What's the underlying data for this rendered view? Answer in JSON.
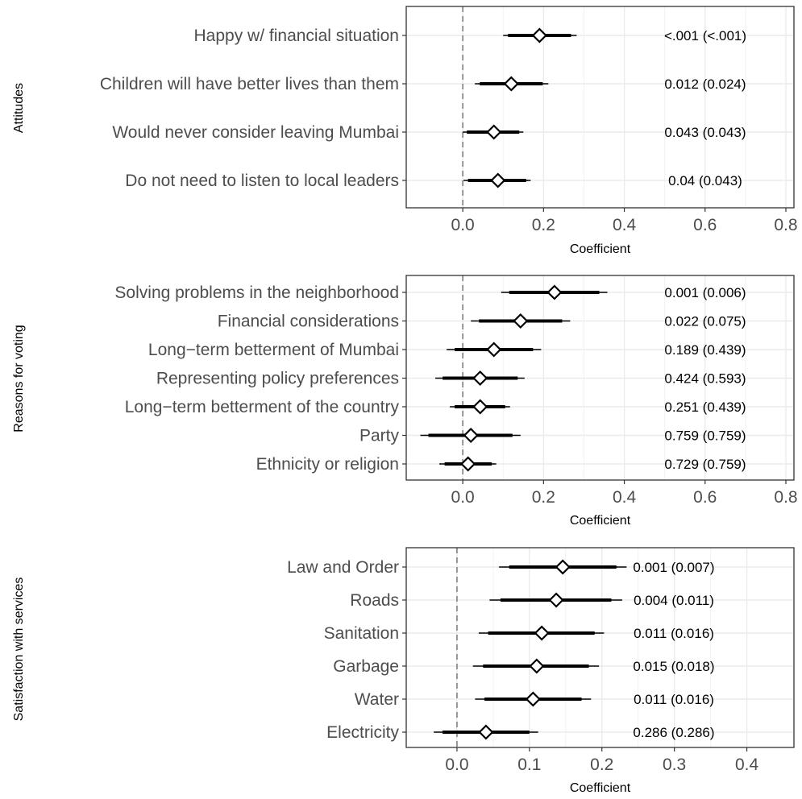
{
  "chart_data": [
    {
      "type": "coefficient",
      "group_label": "Attitudes",
      "xlabel": "Coefficient",
      "xlim": [
        -0.14,
        0.82
      ],
      "ticks": [
        {
          "value": 0.0,
          "label": "0.0"
        },
        {
          "value": 0.2,
          "label": "0.2"
        },
        {
          "value": 0.4,
          "label": "0.4"
        },
        {
          "value": 0.6,
          "label": "0.6"
        },
        {
          "value": 0.8,
          "label": "0.8"
        }
      ],
      "rows": [
        {
          "label": "Happy w/ financial situation",
          "estimate": 0.19,
          "ci90": [
            0.112,
            0.268
          ],
          "ci95": [
            0.1,
            0.282
          ],
          "annotation": "<.001 (<.001)"
        },
        {
          "label": "Children will have better lives than them",
          "estimate": 0.12,
          "ci90": [
            0.042,
            0.198
          ],
          "ci95": [
            0.03,
            0.212
          ],
          "annotation": "0.012 (0.024)"
        },
        {
          "label": "Would never consider leaving Mumbai",
          "estimate": 0.077,
          "ci90": [
            0.01,
            0.14
          ],
          "ci95": [
            0.0,
            0.15
          ],
          "annotation": "0.043 (0.043)"
        },
        {
          "label": "Do not need to listen to local leaders",
          "estimate": 0.087,
          "ci90": [
            0.013,
            0.157
          ],
          "ci95": [
            0.002,
            0.168
          ],
          "annotation": "0.04 (0.043)"
        }
      ]
    },
    {
      "type": "coefficient",
      "group_label": "Reasons for voting",
      "xlabel": "Coefficient",
      "xlim": [
        -0.14,
        0.82
      ],
      "ticks": [
        {
          "value": 0.0,
          "label": "0.0"
        },
        {
          "value": 0.2,
          "label": "0.2"
        },
        {
          "value": 0.4,
          "label": "0.4"
        },
        {
          "value": 0.6,
          "label": "0.6"
        },
        {
          "value": 0.8,
          "label": "0.8"
        }
      ],
      "rows": [
        {
          "label": "Solving problems in the neighborhood",
          "estimate": 0.227,
          "ci90": [
            0.115,
            0.338
          ],
          "ci95": [
            0.095,
            0.358
          ],
          "annotation": "0.001 (0.006)"
        },
        {
          "label": "Financial considerations",
          "estimate": 0.143,
          "ci90": [
            0.04,
            0.246
          ],
          "ci95": [
            0.02,
            0.266
          ],
          "annotation": "0.022 (0.075)"
        },
        {
          "label": "Long−term betterment of Mumbai",
          "estimate": 0.077,
          "ci90": [
            -0.02,
            0.174
          ],
          "ci95": [
            -0.04,
            0.194
          ],
          "annotation": "0.189 (0.439)"
        },
        {
          "label": "Representing policy preferences",
          "estimate": 0.043,
          "ci90": [
            -0.05,
            0.136
          ],
          "ci95": [
            -0.068,
            0.153
          ],
          "annotation": "0.424 (0.593)"
        },
        {
          "label": "Long−term betterment of the country",
          "estimate": 0.043,
          "ci90": [
            -0.02,
            0.105
          ],
          "ci95": [
            -0.032,
            0.117
          ],
          "annotation": "0.251 (0.439)"
        },
        {
          "label": "Party",
          "estimate": 0.02,
          "ci90": [
            -0.085,
            0.123
          ],
          "ci95": [
            -0.105,
            0.143
          ],
          "annotation": "0.759 (0.759)"
        },
        {
          "label": "Ethnicity or religion",
          "estimate": 0.013,
          "ci90": [
            -0.045,
            0.072
          ],
          "ci95": [
            -0.058,
            0.083
          ],
          "annotation": "0.729 (0.759)"
        }
      ]
    },
    {
      "type": "coefficient",
      "group_label": "Satisfaction with services",
      "xlabel": "Coefficient",
      "xlim": [
        -0.07,
        0.465
      ],
      "ticks": [
        {
          "value": 0.0,
          "label": "0.0"
        },
        {
          "value": 0.1,
          "label": "0.1"
        },
        {
          "value": 0.2,
          "label": "0.2"
        },
        {
          "value": 0.3,
          "label": "0.3"
        },
        {
          "value": 0.4,
          "label": "0.4"
        }
      ],
      "rows": [
        {
          "label": "Law and Order",
          "estimate": 0.146,
          "ci90": [
            0.072,
            0.22
          ],
          "ci95": [
            0.058,
            0.234
          ],
          "annotation": "0.001 (0.007)"
        },
        {
          "label": "Roads",
          "estimate": 0.137,
          "ci90": [
            0.06,
            0.213
          ],
          "ci95": [
            0.045,
            0.228
          ],
          "annotation": "0.004 (0.011)"
        },
        {
          "label": "Sanitation",
          "estimate": 0.117,
          "ci90": [
            0.043,
            0.19
          ],
          "ci95": [
            0.03,
            0.203
          ],
          "annotation": "0.011 (0.016)"
        },
        {
          "label": "Garbage",
          "estimate": 0.11,
          "ci90": [
            0.036,
            0.182
          ],
          "ci95": [
            0.022,
            0.196
          ],
          "annotation": "0.015 (0.018)"
        },
        {
          "label": "Water",
          "estimate": 0.105,
          "ci90": [
            0.038,
            0.172
          ],
          "ci95": [
            0.025,
            0.185
          ],
          "annotation": "0.011 (0.016)"
        },
        {
          "label": "Electricity",
          "estimate": 0.04,
          "ci90": [
            -0.02,
            0.1
          ],
          "ci95": [
            -0.032,
            0.112
          ],
          "annotation": "0.286 (0.286)"
        }
      ]
    }
  ]
}
